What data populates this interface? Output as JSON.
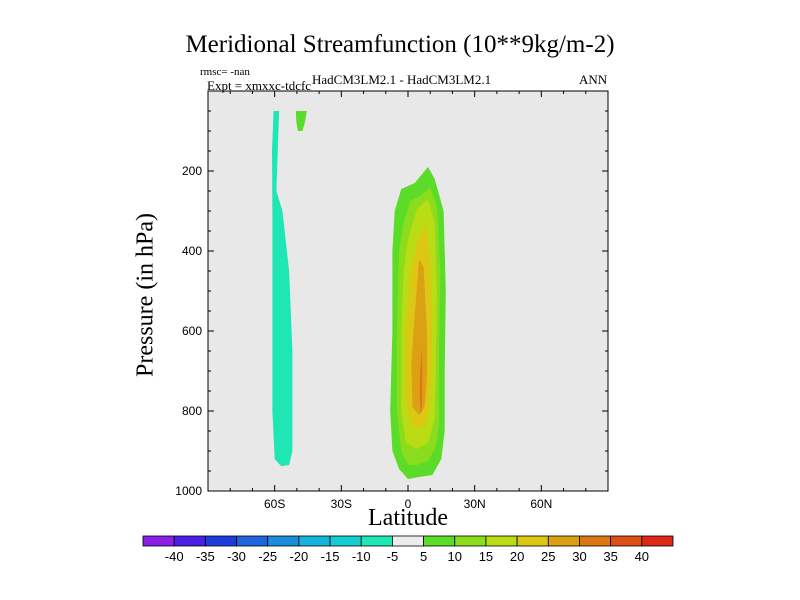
{
  "chart_data": {
    "type": "heatmap",
    "subtype": "filled-contour",
    "title": "Meridional Streamfunction (10**9kg/m-2)",
    "left_label": [
      "rmsc= -nan",
      "Expt = xmxxc-tdcfc"
    ],
    "center_label": "HadCM3LM2.1 - HadCM3LM2.1",
    "right_label": "ANN",
    "xlabel": "Latitude",
    "ylabel": "Pressure (in hPa)",
    "xlim": [
      -90,
      90
    ],
    "ylim": [
      1000,
      0
    ],
    "x_ticks": [
      {
        "value": -60,
        "label": "60S"
      },
      {
        "value": -30,
        "label": "30S"
      },
      {
        "value": 0,
        "label": "0"
      },
      {
        "value": 30,
        "label": "30N"
      },
      {
        "value": 60,
        "label": "60N"
      }
    ],
    "y_ticks": [
      {
        "value": 200,
        "label": "200"
      },
      {
        "value": 400,
        "label": "400"
      },
      {
        "value": 600,
        "label": "600"
      },
      {
        "value": 800,
        "label": "800"
      },
      {
        "value": 1000,
        "label": "1000"
      }
    ],
    "levels": [
      -40,
      -35,
      -30,
      -25,
      -20,
      -15,
      -10,
      -5,
      5,
      10,
      15,
      20,
      25,
      30,
      35,
      40
    ],
    "colorbar_colors": [
      "#8c1ee6",
      "#4b1ee6",
      "#1e3cdc",
      "#1e64dc",
      "#1e8cdc",
      "#14b4dc",
      "#14cdd2",
      "#1ee6b4",
      "#ececec",
      "#5adc28",
      "#8cdc1e",
      "#b9dc14",
      "#dcc814",
      "#dca014",
      "#dc7814",
      "#dc5014",
      "#dc2814"
    ],
    "background_color": "#e8e8e8",
    "regions": [
      {
        "name": "negative-cell-southern",
        "level": "-10 to -5",
        "color": "#1ee6b4",
        "polygon": [
          [
            -60.5,
            50
          ],
          [
            -58,
            50
          ],
          [
            -59.2,
            250
          ],
          [
            -56.5,
            300
          ],
          [
            -53.5,
            450
          ],
          [
            -52,
            650
          ],
          [
            -52,
            900
          ],
          [
            -53.5,
            935
          ],
          [
            -57,
            938
          ],
          [
            -60,
            920
          ],
          [
            -61,
            800
          ],
          [
            -61,
            300
          ],
          [
            -61.2,
            150
          ]
        ]
      },
      {
        "name": "positive-cell-small",
        "level": "5 to 10",
        "color": "#5adc28",
        "polygon": [
          [
            -50.5,
            50
          ],
          [
            -45.5,
            50
          ],
          [
            -46.5,
            80
          ],
          [
            -47.5,
            100
          ],
          [
            -49.5,
            100
          ],
          [
            -50.2,
            80
          ]
        ]
      },
      {
        "name": "positive-cell-outer",
        "level": "5 to 10",
        "color": "#5adc28",
        "polygon": [
          [
            -6,
            300
          ],
          [
            -3,
            245
          ],
          [
            3,
            230
          ],
          [
            9,
            190
          ],
          [
            12,
            220
          ],
          [
            16,
            300
          ],
          [
            17,
            500
          ],
          [
            16.5,
            700
          ],
          [
            16.5,
            850
          ],
          [
            15,
            920
          ],
          [
            11,
            960
          ],
          [
            5,
            965
          ],
          [
            0,
            970
          ],
          [
            -4,
            945
          ],
          [
            -7,
            900
          ],
          [
            -8,
            800
          ],
          [
            -7,
            600
          ],
          [
            -7,
            400
          ]
        ]
      },
      {
        "name": "positive-cell-10",
        "level": "10 to 15",
        "color": "#8cdc1e",
        "polygon": [
          [
            -2,
            330
          ],
          [
            1,
            275
          ],
          [
            6,
            260
          ],
          [
            10,
            240
          ],
          [
            13,
            290
          ],
          [
            14.5,
            450
          ],
          [
            14,
            650
          ],
          [
            14,
            830
          ],
          [
            12.5,
            890
          ],
          [
            9,
            925
          ],
          [
            4,
            935
          ],
          [
            0,
            935
          ],
          [
            -3,
            900
          ],
          [
            -5,
            800
          ],
          [
            -5,
            600
          ],
          [
            -4,
            400
          ]
        ]
      },
      {
        "name": "positive-cell-15",
        "level": "15 to 20",
        "color": "#b9dc14",
        "polygon": [
          [
            0,
            370
          ],
          [
            4,
            295
          ],
          [
            9,
            270
          ],
          [
            12,
            330
          ],
          [
            13,
            500
          ],
          [
            12.5,
            700
          ],
          [
            12,
            820
          ],
          [
            9,
            880
          ],
          [
            4,
            895
          ],
          [
            -1,
            880
          ],
          [
            -3,
            800
          ],
          [
            -3,
            600
          ],
          [
            -2,
            450
          ]
        ]
      },
      {
        "name": "positive-cell-20",
        "level": "20 to 25",
        "color": "#dcc814",
        "polygon": [
          [
            1,
            460
          ],
          [
            4,
            380
          ],
          [
            8,
            330
          ],
          [
            10,
            420
          ],
          [
            11,
            580
          ],
          [
            10.5,
            720
          ],
          [
            9.5,
            800
          ],
          [
            7,
            840
          ],
          [
            2,
            840
          ],
          [
            -1,
            780
          ],
          [
            -1,
            600
          ]
        ]
      },
      {
        "name": "positive-cell-25",
        "level": "25 to 30",
        "color": "#dca014",
        "polygon": [
          [
            3,
            560
          ],
          [
            5,
            420
          ],
          [
            7,
            440
          ],
          [
            8.5,
            600
          ],
          [
            8.5,
            720
          ],
          [
            7.5,
            790
          ],
          [
            5,
            810
          ],
          [
            2,
            790
          ],
          [
            1.5,
            680
          ]
        ]
      },
      {
        "name": "positive-cell-30",
        "level": "30 to 35",
        "color": "#dc7814",
        "polygon": [
          [
            5.5,
            700
          ],
          [
            6.2,
            640
          ],
          [
            6.5,
            720
          ],
          [
            6.3,
            790
          ],
          [
            5.8,
            810
          ],
          [
            5.2,
            760
          ]
        ]
      }
    ]
  }
}
